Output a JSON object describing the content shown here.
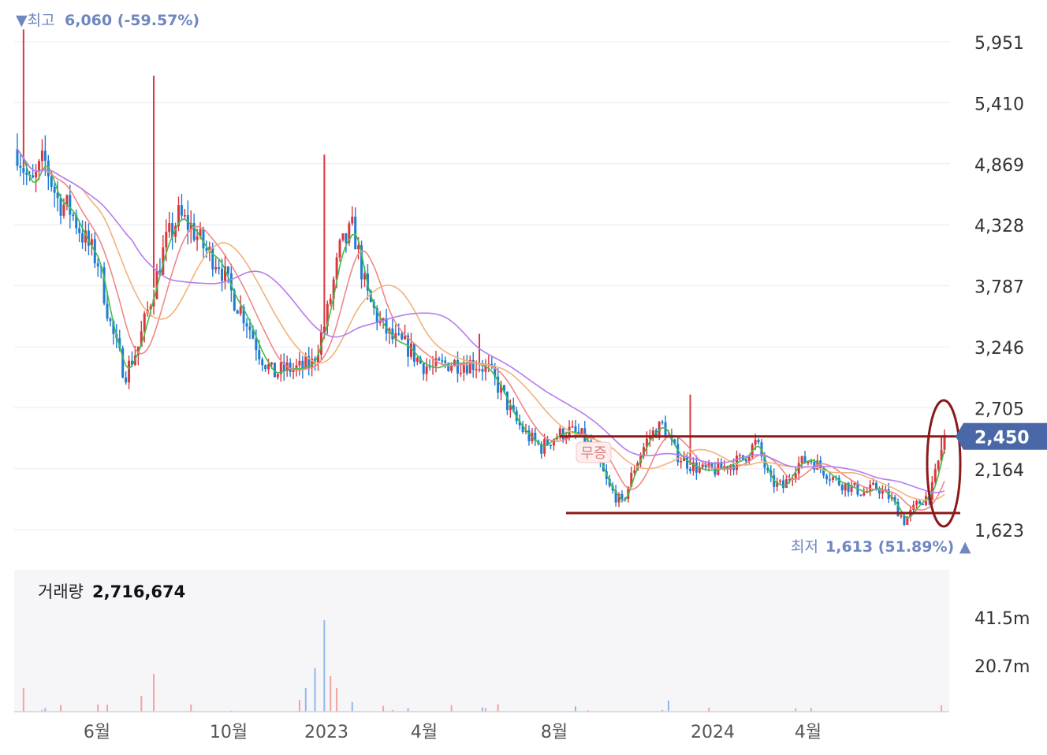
{
  "header": {
    "high_label": "▼최고",
    "high_value": "6,060 (-59.57%)"
  },
  "low": {
    "label": "최저",
    "value": "1,613 (51.89%) ▲"
  },
  "price_tag": "2,450",
  "badge": "무증",
  "volume": {
    "label": "거래량",
    "value": "2,716,674"
  },
  "colors": {
    "up": "#d8383f",
    "down": "#1f7bd4",
    "ma5": "#3fbf4a",
    "ma20": "#f08787",
    "ma60": "#f2b27a",
    "ma120": "#b57cf0",
    "marker": "#8b1a1a",
    "tag": "#4a68a8",
    "vol_up": "#f3a3a3",
    "vol_down": "#8fb8ea"
  },
  "chart_data": [
    {
      "type": "candlestick",
      "title": "",
      "y_ticks": [
        "5,951",
        "5,410",
        "4,869",
        "4,328",
        "3,787",
        "3,246",
        "2,705",
        "2,164",
        "1,623"
      ],
      "ylim": [
        1623,
        6060
      ],
      "x_ticks": [
        "6월",
        "10월",
        "2023",
        "4월",
        "8월",
        "2024",
        "4월"
      ],
      "grid": true,
      "high": {
        "value": 6060,
        "text": "6,060 (-59.57%)"
      },
      "low": {
        "value": 1613,
        "text": "1,613 (51.89%)"
      },
      "current": 2450,
      "resistance": 2450,
      "support": 1770,
      "close_path": [
        5000,
        4650,
        4900,
        4550,
        4450,
        4200,
        4000,
        3400,
        3000,
        3250,
        3700,
        4150,
        4400,
        4300,
        4100,
        4000,
        3700,
        3500,
        3200,
        3000,
        3050,
        3050,
        3100,
        3500,
        4100,
        4300,
        3700,
        3450,
        3300,
        3250,
        3100,
        3050,
        3100,
        3100,
        3100,
        3050,
        2850,
        2600,
        2450,
        2350,
        2450,
        2500,
        2450,
        2300,
        2000,
        1850,
        2200,
        2450,
        2550,
        2300,
        2200,
        2150,
        2150,
        2200,
        2250,
        2400,
        2050,
        2000,
        2200,
        2250,
        2150,
        2050,
        2000,
        1950,
        2000,
        1900,
        1700,
        1850,
        1950,
        2450
      ]
    },
    {
      "type": "bar",
      "title": "",
      "series_name": "거래량",
      "y_ticks": [
        "41.5m",
        "20.7m"
      ],
      "current": "2,716,674"
    }
  ]
}
